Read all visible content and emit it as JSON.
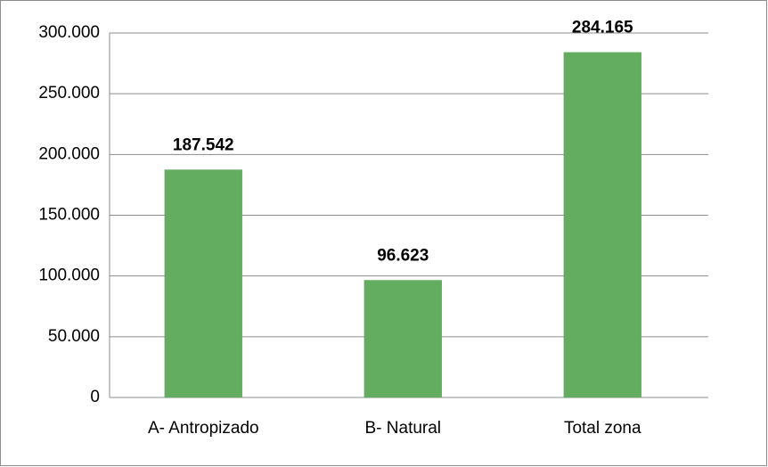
{
  "chart_data": {
    "type": "bar",
    "categories": [
      "A- Antropizado",
      "B- Natural",
      "Total zona"
    ],
    "values": [
      187542,
      96623,
      284165
    ],
    "value_labels": [
      "187.542",
      "96.623",
      "284.165"
    ],
    "color": "#62ad5f",
    "ylim": [
      0,
      300000
    ],
    "yticks": [
      0,
      {
        "value": 50000,
        "label": "50.000"
      },
      {
        "value": 100000,
        "label": "100.000"
      },
      {
        "value": 150000,
        "label": "150.000"
      },
      {
        "value": 200000,
        "label": "200.000"
      },
      {
        "value": 250000,
        "label": "250.000"
      },
      {
        "value": 300000,
        "label": "300.000"
      }
    ],
    "grid": true
  }
}
